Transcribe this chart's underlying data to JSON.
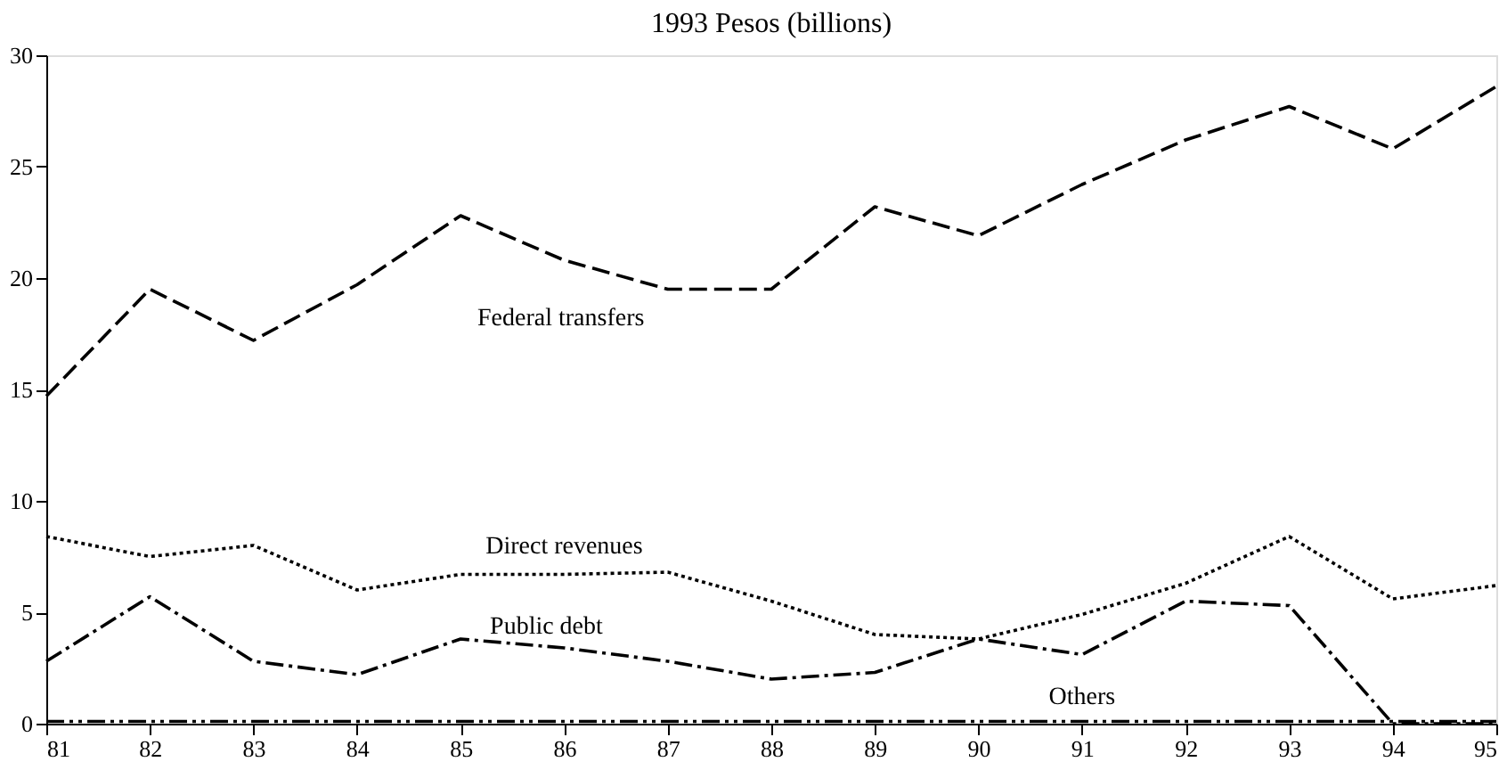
{
  "chart_data": {
    "type": "line",
    "title": "1993 Pesos (billions)",
    "x": [
      81,
      82,
      83,
      84,
      85,
      86,
      87,
      88,
      89,
      90,
      91,
      92,
      93,
      94,
      95
    ],
    "series": [
      {
        "name": "Federal transfers",
        "color": "#000000",
        "line_style": "dashed",
        "values": [
          14.7,
          19.5,
          17.2,
          19.7,
          22.8,
          20.8,
          19.5,
          19.5,
          23.2,
          21.9,
          24.2,
          26.2,
          27.7,
          25.8,
          28.6
        ]
      },
      {
        "name": "Direct revenues",
        "color": "#000000",
        "line_style": "dotted",
        "values": [
          8.4,
          7.5,
          8.0,
          6.0,
          6.7,
          6.7,
          6.8,
          5.5,
          4.0,
          3.8,
          4.9,
          6.3,
          8.4,
          5.6,
          6.2
        ]
      },
      {
        "name": "Public debt",
        "color": "#000000",
        "line_style": "dashdot",
        "values": [
          2.8,
          5.7,
          2.8,
          2.2,
          3.8,
          3.4,
          2.8,
          2.0,
          2.3,
          3.8,
          3.1,
          5.5,
          5.3,
          0.0,
          0.0
        ]
      },
      {
        "name": "Others",
        "color": "#000000",
        "line_style": "dashdotdot",
        "values": [
          0.1,
          0.1,
          0.1,
          0.1,
          0.1,
          0.1,
          0.1,
          0.1,
          0.1,
          0.1,
          0.1,
          0.1,
          0.1,
          0.1,
          0.1
        ]
      }
    ],
    "xlim": [
      81,
      95
    ],
    "xticks": [
      81,
      82,
      83,
      84,
      85,
      86,
      87,
      88,
      89,
      90,
      91,
      92,
      93,
      94,
      95
    ],
    "ylim": [
      0,
      30
    ],
    "yticks": [
      0,
      5,
      10,
      15,
      20,
      25,
      30
    ],
    "grid": false,
    "legend": false,
    "marker": "none"
  }
}
